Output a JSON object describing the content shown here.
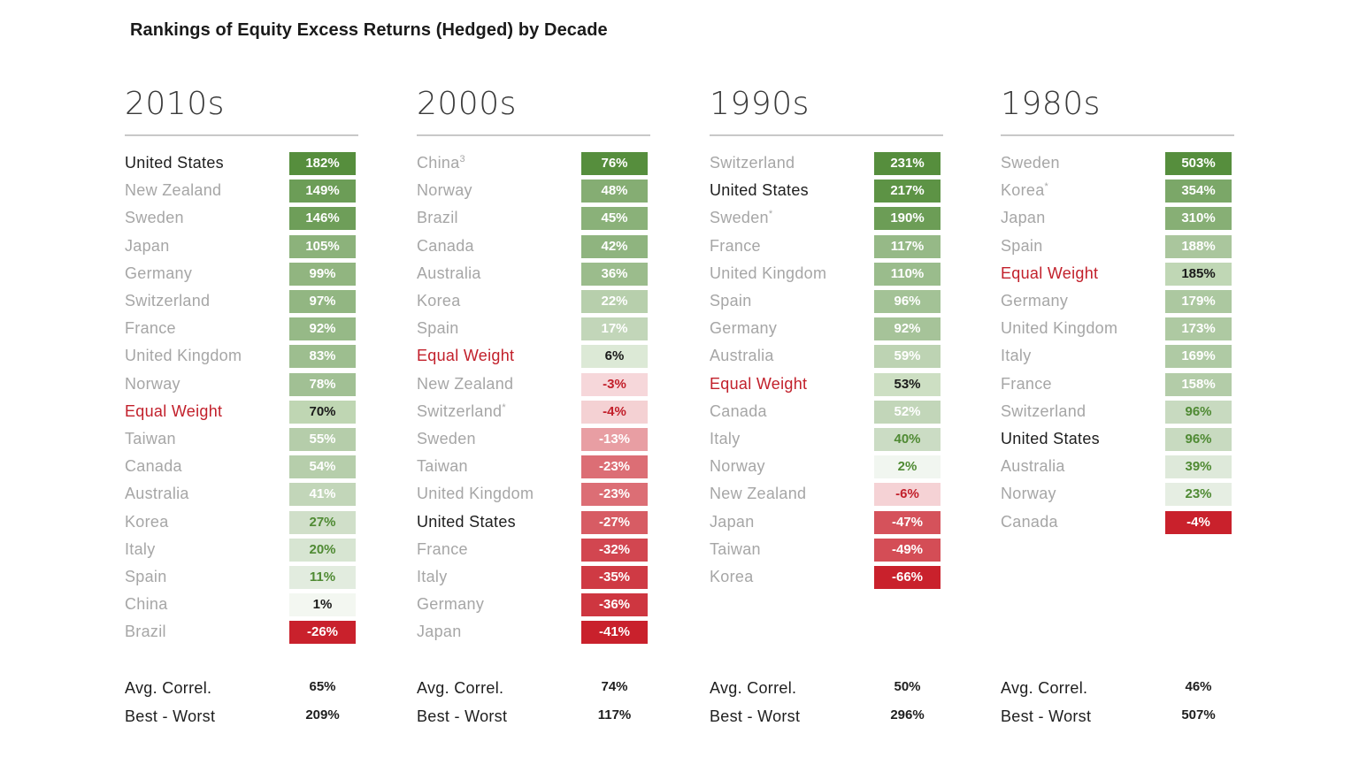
{
  "title": "Rankings of Equity Excess Returns (Hedged) by Decade",
  "colors": {
    "positive_dark": "#5a9140",
    "negative_dark": "#c9212c",
    "equal_weight_label": "#c2202b",
    "us_label": "#1e1e1e",
    "other_label": "#a6a6a6"
  },
  "chart_data": {
    "type": "table",
    "value_unit": "%",
    "footer_labels": {
      "avg_correl": "Avg. Correl.",
      "best_worst": "Best - Worst"
    },
    "panels": [
      {
        "decade": "2010s",
        "rows": [
          {
            "country": "United States",
            "value": 182,
            "display": "182%"
          },
          {
            "country": "New Zealand",
            "value": 149,
            "display": "149%"
          },
          {
            "country": "Sweden",
            "value": 146,
            "display": "146%"
          },
          {
            "country": "Japan",
            "value": 105,
            "display": "105%"
          },
          {
            "country": "Germany",
            "value": 99,
            "display": "99%"
          },
          {
            "country": "Switzerland",
            "value": 97,
            "display": "97%"
          },
          {
            "country": "France",
            "value": 92,
            "display": "92%"
          },
          {
            "country": "United Kingdom",
            "value": 83,
            "display": "83%"
          },
          {
            "country": "Norway",
            "value": 78,
            "display": "78%"
          },
          {
            "country": "Equal Weight",
            "value": 70,
            "display": "70%"
          },
          {
            "country": "Taiwan",
            "value": 55,
            "display": "55%"
          },
          {
            "country": "Canada",
            "value": 54,
            "display": "54%"
          },
          {
            "country": "Australia",
            "value": 41,
            "display": "41%"
          },
          {
            "country": "Korea",
            "value": 27,
            "display": "27%"
          },
          {
            "country": "Italy",
            "value": 20,
            "display": "20%"
          },
          {
            "country": "Spain",
            "value": 11,
            "display": "11%"
          },
          {
            "country": "China",
            "value": 1,
            "display": "1%"
          },
          {
            "country": "Brazil",
            "value": -26,
            "display": "-26%"
          }
        ],
        "avg_correl": "65%",
        "best_worst": "209%"
      },
      {
        "decade": "2000s",
        "rows": [
          {
            "country": "China",
            "sup": "3",
            "value": 76,
            "display": "76%"
          },
          {
            "country": "Norway",
            "value": 48,
            "display": "48%"
          },
          {
            "country": "Brazil",
            "value": 45,
            "display": "45%"
          },
          {
            "country": "Canada",
            "value": 42,
            "display": "42%"
          },
          {
            "country": "Australia",
            "value": 36,
            "display": "36%"
          },
          {
            "country": "Korea",
            "value": 22,
            "display": "22%"
          },
          {
            "country": "Spain",
            "value": 17,
            "display": "17%"
          },
          {
            "country": "Equal Weight",
            "value": 6,
            "display": "6%"
          },
          {
            "country": "New Zealand",
            "value": -3,
            "display": "-3%"
          },
          {
            "country": "Switzerland",
            "sup": "*",
            "value": -4,
            "display": "-4%"
          },
          {
            "country": "Sweden",
            "value": -13,
            "display": "-13%"
          },
          {
            "country": "Taiwan",
            "value": -23,
            "display": "-23%"
          },
          {
            "country": "United Kingdom",
            "value": -23,
            "display": "-23%"
          },
          {
            "country": "United States",
            "value": -27,
            "display": "-27%"
          },
          {
            "country": "France",
            "value": -32,
            "display": "-32%"
          },
          {
            "country": "Italy",
            "value": -35,
            "display": "-35%"
          },
          {
            "country": "Germany",
            "value": -36,
            "display": "-36%"
          },
          {
            "country": "Japan",
            "value": -41,
            "display": "-41%"
          }
        ],
        "avg_correl": "74%",
        "best_worst": "117%"
      },
      {
        "decade": "1990s",
        "rows": [
          {
            "country": "Switzerland",
            "value": 231,
            "display": "231%"
          },
          {
            "country": "United States",
            "value": 217,
            "display": "217%"
          },
          {
            "country": "Sweden",
            "sup": "*",
            "value": 190,
            "display": "190%"
          },
          {
            "country": "France",
            "value": 117,
            "display": "117%"
          },
          {
            "country": "United Kingdom",
            "value": 110,
            "display": "110%"
          },
          {
            "country": "Spain",
            "value": 96,
            "display": "96%"
          },
          {
            "country": "Germany",
            "value": 92,
            "display": "92%"
          },
          {
            "country": "Australia",
            "value": 59,
            "display": "59%"
          },
          {
            "country": "Equal Weight",
            "value": 53,
            "display": "53%"
          },
          {
            "country": "Canada",
            "value": 52,
            "display": "52%"
          },
          {
            "country": "Italy",
            "value": 40,
            "display": "40%"
          },
          {
            "country": "Norway",
            "value": 2,
            "display": "2%"
          },
          {
            "country": "New Zealand",
            "value": -6,
            "display": "-6%"
          },
          {
            "country": "Japan",
            "value": -47,
            "display": "-47%"
          },
          {
            "country": "Taiwan",
            "value": -49,
            "display": "-49%"
          },
          {
            "country": "Korea",
            "value": -66,
            "display": "-66%"
          }
        ],
        "avg_correl": "50%",
        "best_worst": "296%"
      },
      {
        "decade": "1980s",
        "rows": [
          {
            "country": "Sweden",
            "value": 503,
            "display": "503%"
          },
          {
            "country": "Korea",
            "sup": "*",
            "value": 354,
            "display": "354%"
          },
          {
            "country": "Japan",
            "value": 310,
            "display": "310%"
          },
          {
            "country": "Spain",
            "value": 188,
            "display": "188%"
          },
          {
            "country": "Equal Weight",
            "value": 185,
            "display": "185%"
          },
          {
            "country": "Germany",
            "value": 179,
            "display": "179%"
          },
          {
            "country": "United Kingdom",
            "value": 173,
            "display": "173%"
          },
          {
            "country": "Italy",
            "value": 169,
            "display": "169%"
          },
          {
            "country": "France",
            "value": 158,
            "display": "158%"
          },
          {
            "country": "Switzerland",
            "value": 96,
            "display": "96%"
          },
          {
            "country": "United States",
            "value": 96,
            "display": "96%"
          },
          {
            "country": "Australia",
            "value": 39,
            "display": "39%"
          },
          {
            "country": "Norway",
            "value": 23,
            "display": "23%"
          },
          {
            "country": "Canada",
            "value": -4,
            "display": "-4%"
          }
        ],
        "avg_correl": "46%",
        "best_worst": "507%"
      }
    ]
  }
}
